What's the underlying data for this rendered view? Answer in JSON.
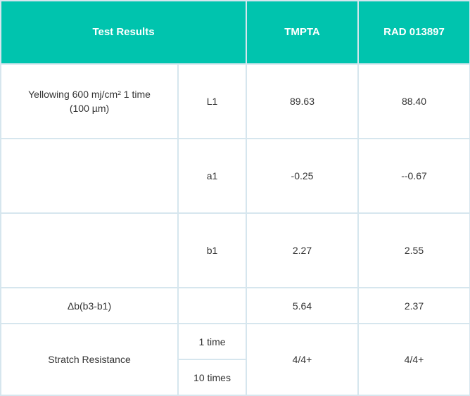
{
  "header": {
    "test_results": "Test Results",
    "col_tmpta": "TMPTA",
    "col_rad": "RAD 013897"
  },
  "rows": {
    "yellowing_label_line1": "Yellowing 600 mj/cm² 1 time",
    "yellowing_label_line2": "(100 µm)",
    "l1": {
      "label": "L1",
      "tmpta": "89.63",
      "rad": "88.40"
    },
    "a1": {
      "label": "a1",
      "tmpta": "-0.25",
      "rad": "--0.67"
    },
    "b1": {
      "label": "b1",
      "tmpta": "2.27",
      "rad": "2.55"
    },
    "delta": {
      "label": "Δb(b3-b1)",
      "tmpta": "5.64",
      "rad": "2.37"
    },
    "scratch": {
      "label": "Stratch Resistance",
      "sub1": "1 time",
      "sub2": "10 times",
      "tmpta": "4/4+",
      "rad": "4/4+"
    }
  },
  "colors": {
    "header_bg": "#00c4ae",
    "header_text": "#ffffff",
    "border": "#d6e6ee",
    "text": "#333333"
  }
}
